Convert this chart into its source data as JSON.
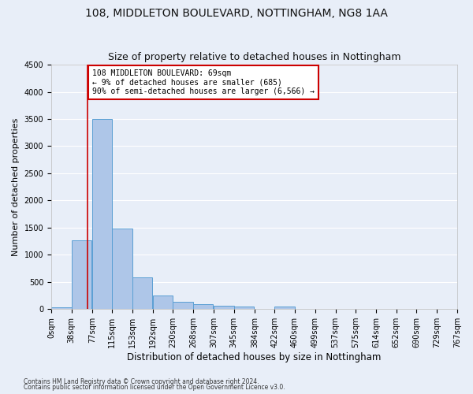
{
  "title1": "108, MIDDLETON BOULEVARD, NOTTINGHAM, NG8 1AA",
  "title2": "Size of property relative to detached houses in Nottingham",
  "xlabel": "Distribution of detached houses by size in Nottingham",
  "ylabel": "Number of detached properties",
  "bin_labels": [
    "0sqm",
    "38sqm",
    "77sqm",
    "115sqm",
    "153sqm",
    "192sqm",
    "230sqm",
    "268sqm",
    "307sqm",
    "345sqm",
    "384sqm",
    "422sqm",
    "460sqm",
    "499sqm",
    "537sqm",
    "575sqm",
    "614sqm",
    "652sqm",
    "690sqm",
    "729sqm",
    "767sqm"
  ],
  "bar_values": [
    30,
    1270,
    3500,
    1480,
    580,
    250,
    140,
    90,
    55,
    40,
    0,
    45,
    0,
    0,
    0,
    0,
    0,
    0,
    0,
    0
  ],
  "bar_color": "#aec6e8",
  "bar_edge_color": "#5a9fd4",
  "ylim": [
    0,
    4500
  ],
  "yticks": [
    0,
    500,
    1000,
    1500,
    2000,
    2500,
    3000,
    3500,
    4000,
    4500
  ],
  "bin_width": 38,
  "vline_color": "#cc0000",
  "vline_x": 69,
  "annotation_text": "108 MIDDLETON BOULEVARD: 69sqm\n← 9% of detached houses are smaller (685)\n90% of semi-detached houses are larger (6,566) →",
  "annotation_box_color": "#ffffff",
  "annotation_box_edge": "#cc0000",
  "footer1": "Contains HM Land Registry data © Crown copyright and database right 2024.",
  "footer2": "Contains public sector information licensed under the Open Government Licence v3.0.",
  "background_color": "#e8eef8",
  "grid_color": "#ffffff",
  "title1_fontsize": 10,
  "title2_fontsize": 9,
  "tick_fontsize": 7,
  "ylabel_fontsize": 8,
  "xlabel_fontsize": 8.5,
  "footer_fontsize": 5.5,
  "annot_fontsize": 7
}
